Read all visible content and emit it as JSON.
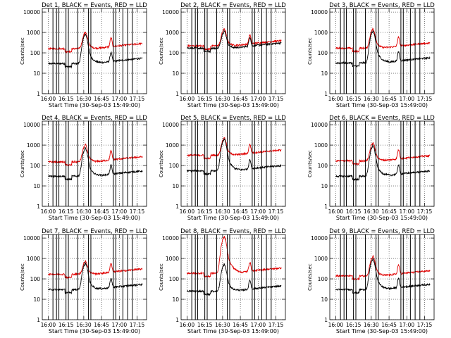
{
  "chart_data": {
    "type": "line",
    "layout": "3x3 grid",
    "x_tick_labels": [
      "16:00",
      "16:15",
      "16:30",
      "16:45",
      "17:00",
      "17:15"
    ],
    "x_ticks_minutes": [
      0,
      15,
      30,
      45,
      60,
      75
    ],
    "xlim_minutes": [
      -5,
      83
    ],
    "y_tick_labels": [
      "1",
      "10",
      "100",
      "1000",
      "10000"
    ],
    "y_ticks": [
      1,
      10,
      100,
      1000,
      10000
    ],
    "ylim": [
      1,
      15000
    ],
    "y_scale": "log",
    "ylabel": "Counts/sec",
    "xlabel": "Start Time (30-Sep-03 15:49:00)",
    "colors": {
      "events": "#000000",
      "lld": "#e00000"
    },
    "panels": [
      {
        "title": "Det  1, BLACK = Events, RED = LLD",
        "xlabel": "Start Time (30-Sep-03 15:49:00)",
        "ylabel": "Counts/sec",
        "events_base": 30,
        "lld_base": 160,
        "events_peak": 700,
        "lld_peak": 900,
        "vlines": [
          4,
          7,
          9,
          15,
          17,
          25,
          34,
          36,
          55,
          57,
          63,
          67,
          71
        ]
      },
      {
        "title": "Det  2, BLACK = Events, RED = LLD",
        "xlabel": "Start Time (30-Sep-03 15:49:00)",
        "ylabel": "Counts/sec",
        "events_base": 170,
        "lld_base": 220,
        "events_peak": 1000,
        "lld_peak": 1300,
        "vlines": [
          4,
          7,
          9,
          15,
          17,
          25,
          34,
          36,
          55,
          57,
          63,
          67,
          71
        ]
      },
      {
        "title": "Det  3, BLACK = Events, RED = LLD",
        "xlabel": "Start Time (30-Sep-03 15:49:00)",
        "ylabel": "Counts/sec",
        "events_base": 32,
        "lld_base": 170,
        "events_peak": 1000,
        "lld_peak": 1300,
        "vlines": [
          4,
          7,
          9,
          15,
          17,
          25,
          34,
          36,
          55,
          57,
          63,
          67,
          71
        ]
      },
      {
        "title": "Det  4, BLACK = Events, RED = LLD",
        "xlabel": "Start Time (30-Sep-03 15:49:00)",
        "ylabel": "Counts/sec",
        "events_base": 30,
        "lld_base": 150,
        "events_peak": 600,
        "lld_peak": 900,
        "vlines": [
          4,
          7,
          9,
          15,
          17,
          25,
          34,
          36,
          55,
          57,
          63,
          67,
          71
        ]
      },
      {
        "title": "Det  5, BLACK = Events, RED = LLD",
        "xlabel": "Start Time (30-Sep-03 15:49:00)",
        "ylabel": "Counts/sec",
        "events_base": 55,
        "lld_base": 320,
        "events_peak": 1700,
        "lld_peak": 2000,
        "vlines": [
          4,
          7,
          9,
          15,
          17,
          25,
          34,
          36,
          55,
          57,
          63,
          67,
          71
        ]
      },
      {
        "title": "Det  6, BLACK = Events, RED = LLD",
        "xlabel": "Start Time (30-Sep-03 15:49:00)",
        "ylabel": "Counts/sec",
        "events_base": 30,
        "lld_base": 170,
        "events_peak": 800,
        "lld_peak": 1100,
        "vlines": [
          4,
          7,
          9,
          15,
          17,
          25,
          34,
          36,
          55,
          57,
          63,
          67,
          71
        ]
      },
      {
        "title": "Det  7, BLACK = Events, RED = LLD",
        "xlabel": "Start Time (30-Sep-03 15:49:00)",
        "ylabel": "Counts/sec",
        "events_base": 30,
        "lld_base": 170,
        "events_peak": 500,
        "lld_peak": 650,
        "vlines": [
          4,
          7,
          9,
          15,
          17,
          25,
          34,
          36,
          55,
          57,
          63,
          67,
          71
        ]
      },
      {
        "title": "Det  8, BLACK = Events, RED = LLD",
        "xlabel": "Start Time (30-Sep-03 15:49:00)",
        "ylabel": "Counts/sec",
        "events_base": 25,
        "lld_base": 190,
        "events_peak": 450,
        "lld_peak": 10000,
        "vlines": [
          4,
          7,
          9,
          15,
          17,
          25,
          34,
          36,
          55,
          57,
          63,
          67,
          71
        ]
      },
      {
        "title": "Det  9, BLACK = Events, RED = LLD",
        "xlabel": "Start Time (30-Sep-03 15:49:00)",
        "ylabel": "Counts/sec",
        "events_base": 30,
        "lld_base": 140,
        "events_peak": 800,
        "lld_peak": 1100,
        "vlines": [
          4,
          7,
          9,
          15,
          17,
          25,
          34,
          36,
          55,
          57,
          63,
          67,
          71
        ]
      }
    ]
  }
}
